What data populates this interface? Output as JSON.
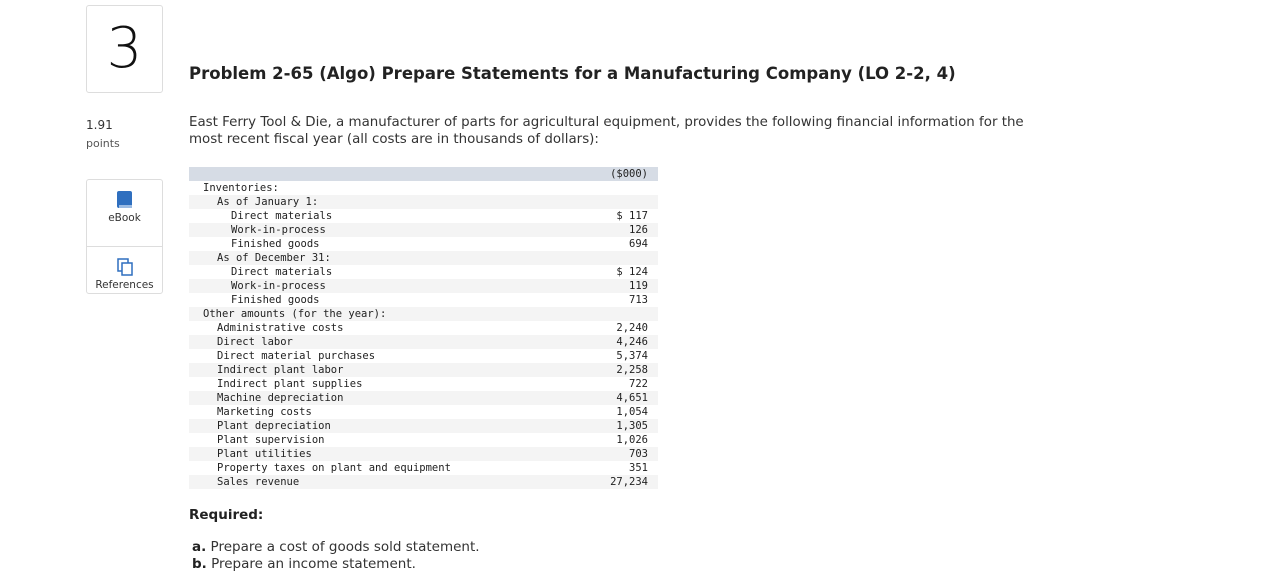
{
  "question": {
    "number": "3",
    "points_value": "1.91",
    "points_label": "points",
    "title": "Problem 2-65 (Algo) Prepare Statements for a Manufacturing Company (LO 2-2, 4)",
    "intro": "East Ferry Tool & Die, a manufacturer of parts for agricultural equipment, provides the following financial information for the most recent fiscal year (all costs are in thousands of dollars):"
  },
  "sidebar": {
    "ebook": "eBook",
    "references": "References"
  },
  "table": {
    "header": "($000)",
    "rows": [
      {
        "label": "Inventories:"
      },
      {
        "label": "As of January 1:"
      },
      {
        "label": "Direct materials",
        "value": "$ 117"
      },
      {
        "label": "Work-in-process",
        "value": "126"
      },
      {
        "label": "Finished goods",
        "value": "694"
      },
      {
        "label": "As of December 31:"
      },
      {
        "label": "Direct materials",
        "value": "$ 124"
      },
      {
        "label": "Work-in-process",
        "value": "119"
      },
      {
        "label": "Finished goods",
        "value": "713"
      },
      {
        "label": "Other amounts (for the year):"
      },
      {
        "label": "Administrative costs",
        "value": "2,240"
      },
      {
        "label": "Direct labor",
        "value": "4,246"
      },
      {
        "label": "Direct material purchases",
        "value": "5,374"
      },
      {
        "label": "Indirect plant labor",
        "value": "2,258"
      },
      {
        "label": "Indirect plant supplies",
        "value": "722"
      },
      {
        "label": "Machine depreciation",
        "value": "4,651"
      },
      {
        "label": "Marketing costs",
        "value": "1,054"
      },
      {
        "label": "Plant depreciation",
        "value": "1,305"
      },
      {
        "label": "Plant supervision",
        "value": "1,026"
      },
      {
        "label": "Plant utilities",
        "value": "703"
      },
      {
        "label": "Property taxes on plant and equipment",
        "value": "351"
      },
      {
        "label": "Sales revenue",
        "value": "27,234"
      }
    ]
  },
  "required": {
    "heading": "Required:",
    "items": [
      {
        "marker": "a.",
        "text": "Prepare a cost of goods sold statement."
      },
      {
        "marker": "b.",
        "text": "Prepare an income statement."
      }
    ]
  }
}
